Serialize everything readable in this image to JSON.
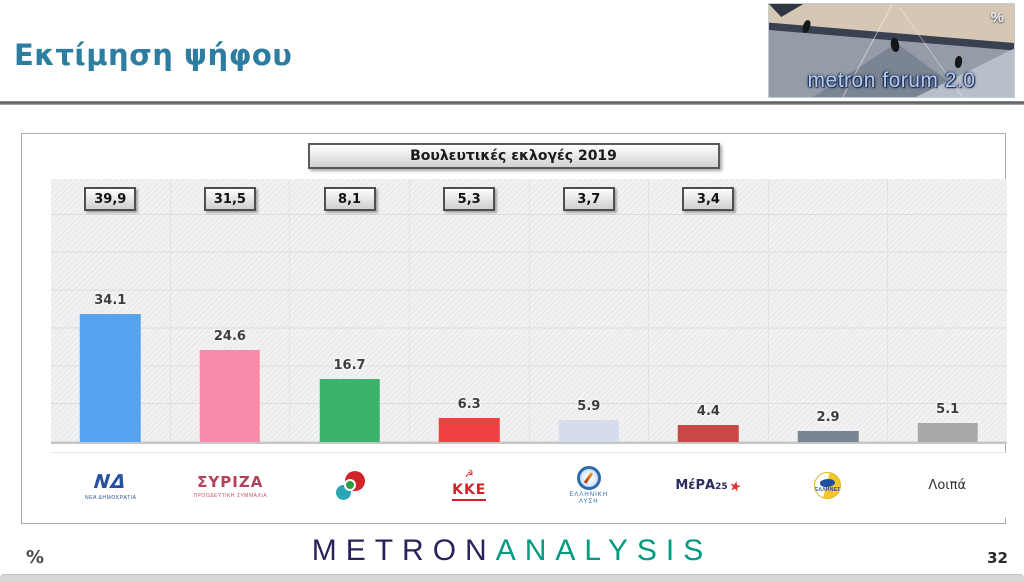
{
  "header": {
    "title": "Εκτίμηση ψήφου",
    "forum_logo": {
      "text": "metron forum 2.0",
      "percent": "%"
    }
  },
  "banner": {
    "label": "Βουλευτικές εκλογές 2019"
  },
  "chart_data": {
    "type": "bar",
    "title": "Εκτίμηση ψήφου",
    "categories": [
      "ΝΕΑ ΔΗΜΟΚΡΑΤΙΑ",
      "ΣΥΡΙΖΑ",
      "ΠΑΣΟΚ-ΚΙΝΑΛ",
      "ΚΚΕ",
      "ΕΛΛΗΝΙΚΗ ΛΥΣΗ",
      "ΜέΡΑ25",
      "ΕΛΛΗΝΕΣ",
      "Λοιπά"
    ],
    "series": [
      {
        "name": "Εκτίμηση ψήφου",
        "values": [
          34.1,
          24.6,
          16.7,
          6.3,
          5.9,
          4.4,
          2.9,
          5.1
        ]
      },
      {
        "name": "Βουλευτικές εκλογές 2019",
        "values": [
          39.9,
          31.5,
          8.1,
          5.3,
          3.7,
          3.4,
          null,
          null
        ]
      }
    ],
    "reference_box_labels": [
      "39,9",
      "31,5",
      "8,1",
      "5,3",
      "3,7",
      "3,4",
      null,
      null
    ],
    "ylim": [
      0,
      70
    ],
    "gridline_step": 10,
    "grid": true,
    "legend_position": "none",
    "bar_colors": [
      "#58a3f1",
      "#f78caa",
      "#3cb36a",
      "#ef4141",
      "#d5dcee",
      "#ca4747",
      "#798592",
      "#a9a9a9"
    ]
  },
  "parties": [
    {
      "label": "ΝΔ",
      "caption": "ΝΕΑ ΔΗΜΟΚΡΑΤΙΑ"
    },
    {
      "label": "ΣΥΡΙΖΑ",
      "caption": "ΠΡΟΟΔΕΥΤΙΚΗ ΣΥΜΜΑΧΙΑ"
    },
    {
      "label": ""
    },
    {
      "label": "ΚΚΕ"
    },
    {
      "caption_line1": "ΕΛΛΗΝΙΚΗ",
      "caption_line2": "ΛΥΣΗ"
    },
    {
      "label": "ΜέΡΑ",
      "label_sub": "25"
    },
    {
      "label": "ΕΛΛΗΝΕΣ"
    },
    {
      "label": "Λοιπά"
    }
  ],
  "footer": {
    "percent": "%",
    "brand_metron": "METRON",
    "brand_analysis": "ANALYSIS",
    "page_number": "32"
  },
  "colors": {
    "title": "#2d7da1",
    "brand_navy": "#29235c",
    "brand_green": "#009b80"
  }
}
